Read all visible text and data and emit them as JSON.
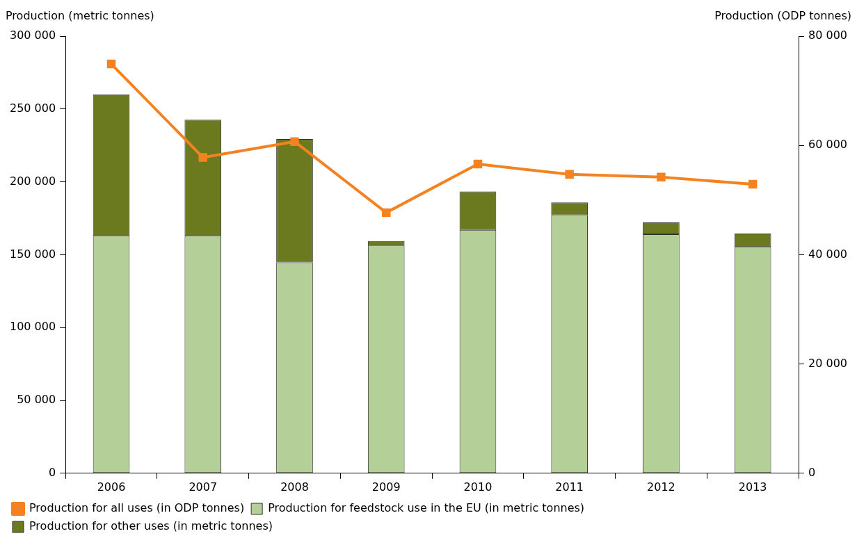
{
  "chart_data": {
    "type": "bar",
    "stacked": true,
    "ylabel": "Production (metric tonnes)",
    "y2label": "Production (ODP tonnes)",
    "categories": [
      "2006",
      "2007",
      "2008",
      "2009",
      "2010",
      "2011",
      "2012",
      "2013"
    ],
    "series": [
      {
        "name": "Production for feedstock use in the EU (in metric tonnes)",
        "color": "#b5cf98",
        "values": [
          163000,
          163000,
          144700,
          156300,
          167000,
          177200,
          164000,
          155300
        ]
      },
      {
        "name": "Production for other uses (in metric tonnes)",
        "color": "#6b7a1f",
        "values": [
          97000,
          79600,
          84700,
          3100,
          26400,
          8600,
          8100,
          9200
        ]
      },
      {
        "name": "Production for all uses (in ODP tonnes)",
        "type": "line",
        "axis": "y2",
        "color": "#f58220",
        "marker": "square",
        "values": [
          74900,
          57800,
          60700,
          47700,
          56600,
          54700,
          54200,
          52900
        ]
      }
    ],
    "ylim": [
      0,
      300000
    ],
    "yticks": [
      {
        "value": 0,
        "label": "0"
      },
      {
        "value": 50000,
        "label": "50 000"
      },
      {
        "value": 100000,
        "label": "100 000"
      },
      {
        "value": 150000,
        "label": "150 000"
      },
      {
        "value": 200000,
        "label": "200 000"
      },
      {
        "value": 250000,
        "label": "250 000"
      },
      {
        "value": 300000,
        "label": "300 000"
      }
    ],
    "y2lim": [
      0,
      80000
    ],
    "y2ticks": [
      {
        "value": 0,
        "label": "0"
      },
      {
        "value": 20000,
        "label": "20 000"
      },
      {
        "value": 40000,
        "label": "40 000"
      },
      {
        "value": 60000,
        "label": "60 000"
      },
      {
        "value": 80000,
        "label": "80 000"
      }
    ],
    "grid": false,
    "legend": "bottom"
  }
}
